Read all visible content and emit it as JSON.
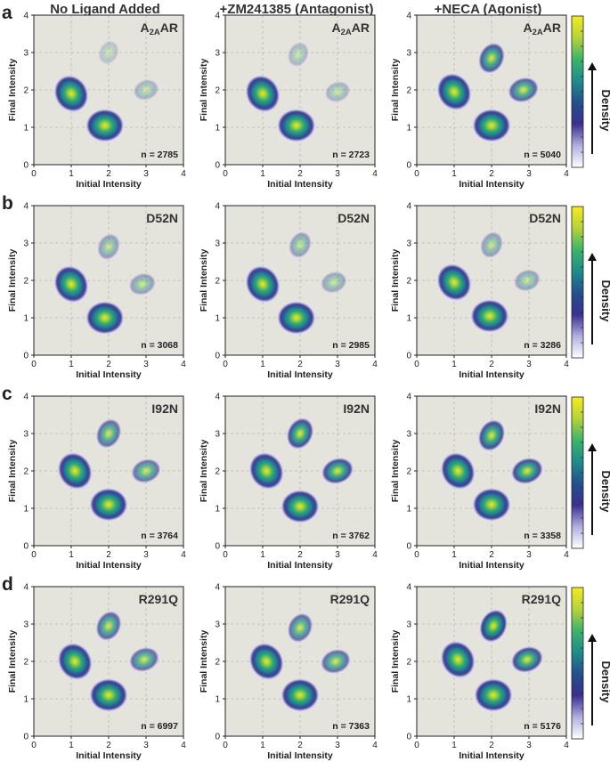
{
  "colors": {
    "background": "#e5e4dc",
    "grid": "#b8b8b0",
    "colormap": [
      "#ffffff",
      "#b0b0e0",
      "#3b2f8f",
      "#23508c",
      "#1e8c8c",
      "#3cb46a",
      "#b5d33a",
      "#f4ec1c"
    ]
  },
  "column_titles": [
    "No Ligand Added",
    "+ZM241385 (Antagonist)",
    "+NECA (Agonist)"
  ],
  "row_letters": [
    "a",
    "b",
    "c",
    "d"
  ],
  "colorbar_label": "Density",
  "chart_data": {
    "type": "heatmap",
    "subtype": "transition density plot (TDP)",
    "xlabel": "Initial Intensity",
    "ylabel": "Final Intensity",
    "xlim": [
      0,
      4
    ],
    "ylim": [
      0,
      4
    ],
    "xticks": [
      0,
      1,
      2,
      3,
      4
    ],
    "yticks": [
      0,
      1,
      2,
      3,
      4
    ],
    "grid": true,
    "grid_style": "dashed",
    "rows": [
      {
        "letter": "a",
        "construct": "A",
        "construct_sub": "2A",
        "construct_suffix": "AR",
        "panels": [
          {
            "condition": "No Ligand Added",
            "n_label": "n = 2785",
            "n": 2785,
            "peaks": [
              {
                "x": 1.0,
                "y": 1.9,
                "w": 1.0
              },
              {
                "x": 1.9,
                "y": 1.05,
                "w": 1.0
              },
              {
                "x": 3.0,
                "y": 2.0,
                "w": 0.12
              },
              {
                "x": 2.0,
                "y": 3.0,
                "w": 0.04
              }
            ]
          },
          {
            "condition": "+ZM241385 (Antagonist)",
            "n_label": "n = 2723",
            "n": 2723,
            "peaks": [
              {
                "x": 1.0,
                "y": 1.9,
                "w": 1.0
              },
              {
                "x": 1.9,
                "y": 1.05,
                "w": 0.95
              },
              {
                "x": 3.0,
                "y": 1.95,
                "w": 0.12
              },
              {
                "x": 1.95,
                "y": 2.95,
                "w": 0.1
              }
            ]
          },
          {
            "condition": "+NECA (Agonist)",
            "n_label": "n = 5040",
            "n": 5040,
            "peaks": [
              {
                "x": 1.0,
                "y": 1.95,
                "w": 0.9
              },
              {
                "x": 2.0,
                "y": 1.05,
                "w": 0.85
              },
              {
                "x": 2.0,
                "y": 2.85,
                "w": 0.55
              },
              {
                "x": 2.85,
                "y": 2.0,
                "w": 0.5
              }
            ]
          }
        ]
      },
      {
        "letter": "b",
        "construct": "D52N",
        "construct_sub": "",
        "construct_suffix": "",
        "panels": [
          {
            "condition": "No Ligand Added",
            "n_label": "n = 3068",
            "n": 3068,
            "peaks": [
              {
                "x": 1.0,
                "y": 1.9,
                "w": 1.0
              },
              {
                "x": 1.9,
                "y": 1.0,
                "w": 1.0
              },
              {
                "x": 2.0,
                "y": 2.9,
                "w": 0.22
              },
              {
                "x": 2.9,
                "y": 1.9,
                "w": 0.22
              }
            ]
          },
          {
            "condition": "+ZM241385 (Antagonist)",
            "n_label": "n = 2985",
            "n": 2985,
            "peaks": [
              {
                "x": 1.0,
                "y": 1.9,
                "w": 1.0
              },
              {
                "x": 1.9,
                "y": 1.0,
                "w": 1.0
              },
              {
                "x": 2.0,
                "y": 2.95,
                "w": 0.22
              },
              {
                "x": 2.9,
                "y": 1.95,
                "w": 0.18
              }
            ]
          },
          {
            "condition": "+NECA (Agonist)",
            "n_label": "n = 3286",
            "n": 3286,
            "peaks": [
              {
                "x": 1.0,
                "y": 1.95,
                "w": 1.0
              },
              {
                "x": 1.95,
                "y": 1.05,
                "w": 0.95
              },
              {
                "x": 2.0,
                "y": 2.95,
                "w": 0.22
              },
              {
                "x": 2.95,
                "y": 2.0,
                "w": 0.2
              }
            ]
          }
        ]
      },
      {
        "letter": "c",
        "construct": "I92N",
        "construct_sub": "",
        "construct_suffix": "",
        "panels": [
          {
            "condition": "No Ligand Added",
            "n_label": "n = 3764",
            "n": 3764,
            "peaks": [
              {
                "x": 1.1,
                "y": 2.0,
                "w": 1.0
              },
              {
                "x": 2.0,
                "y": 1.1,
                "w": 1.0
              },
              {
                "x": 2.0,
                "y": 3.0,
                "w": 0.45
              },
              {
                "x": 3.0,
                "y": 2.0,
                "w": 0.42
              }
            ]
          },
          {
            "condition": "+ZM241385 (Antagonist)",
            "n_label": "n = 3762",
            "n": 3762,
            "peaks": [
              {
                "x": 1.1,
                "y": 2.0,
                "w": 0.95
              },
              {
                "x": 2.0,
                "y": 1.05,
                "w": 1.0
              },
              {
                "x": 2.0,
                "y": 3.0,
                "w": 0.6
              },
              {
                "x": 3.0,
                "y": 2.0,
                "w": 0.6
              }
            ]
          },
          {
            "condition": "+NECA (Agonist)",
            "n_label": "n = 3358",
            "n": 3358,
            "peaks": [
              {
                "x": 1.1,
                "y": 2.0,
                "w": 1.0
              },
              {
                "x": 2.0,
                "y": 1.1,
                "w": 1.0
              },
              {
                "x": 2.0,
                "y": 2.95,
                "w": 0.6
              },
              {
                "x": 2.95,
                "y": 2.0,
                "w": 0.6
              }
            ]
          }
        ]
      },
      {
        "letter": "d",
        "construct": "R291Q",
        "construct_sub": "",
        "construct_suffix": "",
        "panels": [
          {
            "condition": "No Ligand Added",
            "n_label": "n = 6997",
            "n": 6997,
            "peaks": [
              {
                "x": 1.1,
                "y": 2.0,
                "w": 1.0
              },
              {
                "x": 2.0,
                "y": 1.1,
                "w": 1.0
              },
              {
                "x": 2.0,
                "y": 2.95,
                "w": 0.48
              },
              {
                "x": 2.95,
                "y": 2.05,
                "w": 0.45
              }
            ]
          },
          {
            "condition": "+ZM241385 (Antagonist)",
            "n_label": "n = 7363",
            "n": 7363,
            "peaks": [
              {
                "x": 1.1,
                "y": 2.0,
                "w": 1.0
              },
              {
                "x": 2.0,
                "y": 1.1,
                "w": 1.0
              },
              {
                "x": 2.0,
                "y": 2.9,
                "w": 0.45
              },
              {
                "x": 2.95,
                "y": 2.0,
                "w": 0.45
              }
            ]
          },
          {
            "condition": "+NECA (Agonist)",
            "n_label": "n = 5176",
            "n": 5176,
            "peaks": [
              {
                "x": 1.1,
                "y": 2.05,
                "w": 0.95
              },
              {
                "x": 2.05,
                "y": 1.1,
                "w": 0.95
              },
              {
                "x": 2.05,
                "y": 2.95,
                "w": 0.7
              },
              {
                "x": 2.95,
                "y": 2.05,
                "w": 0.6
              }
            ]
          }
        ]
      }
    ]
  }
}
